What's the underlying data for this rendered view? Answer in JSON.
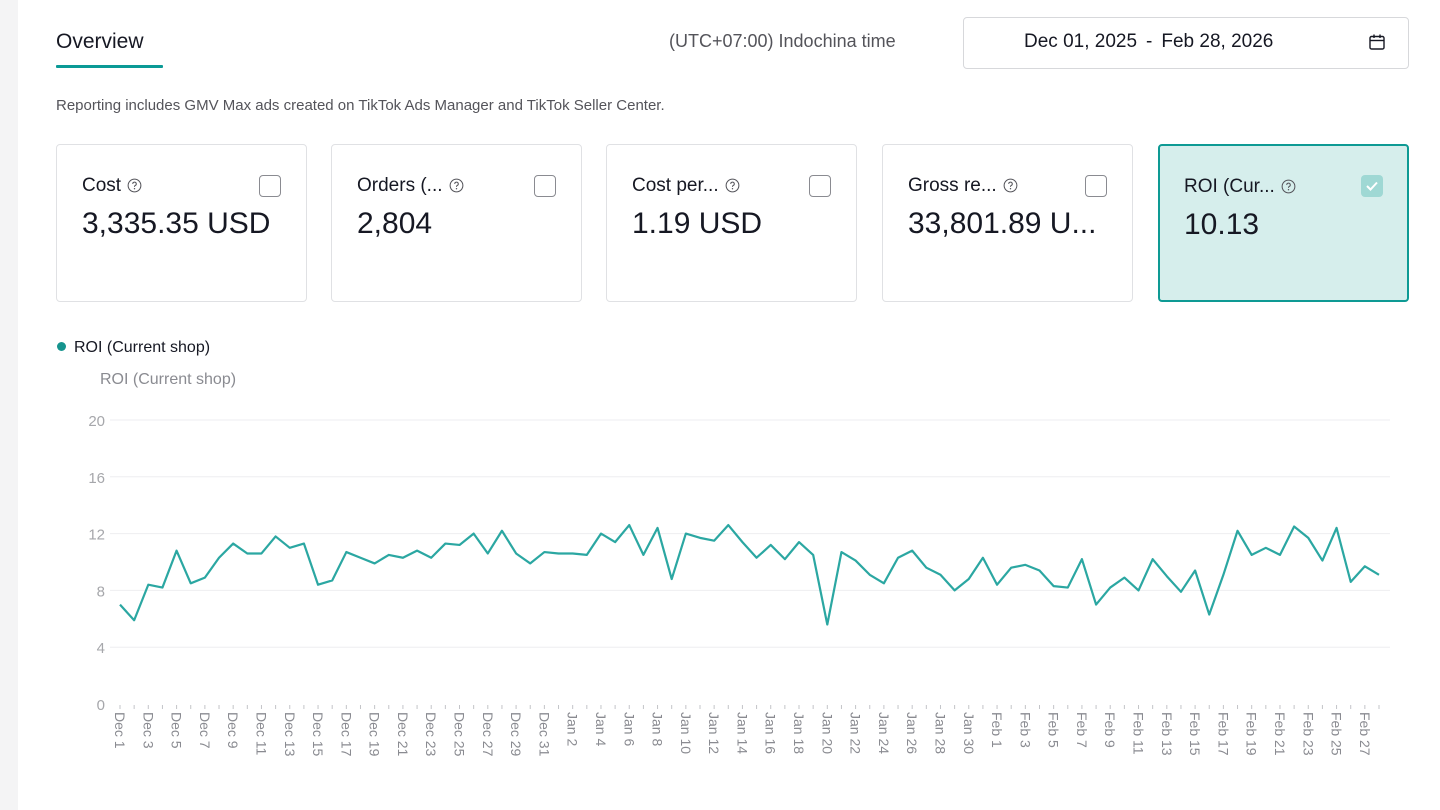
{
  "overview": {
    "tab_label": "Overview",
    "timezone": "(UTC+07:00) Indochina time",
    "date_start": "Dec 01, 2025",
    "date_sep": "-",
    "date_end": "Feb 28, 2026",
    "note": "Reporting includes GMV Max ads created on TikTok Ads Manager and TikTok Seller Center."
  },
  "metrics": [
    {
      "label": "Cost",
      "value": "3,335.35 USD",
      "checked": false
    },
    {
      "label": "Orders (...",
      "value": "2,804",
      "checked": false
    },
    {
      "label": "Cost per...",
      "value": "1.19 USD",
      "checked": false
    },
    {
      "label": "Gross re...",
      "value": "33,801.89 U...",
      "checked": false
    },
    {
      "label": "ROI (Cur...",
      "value": "10.13",
      "checked": true
    }
  ],
  "colors": {
    "accent": "#0b9a96",
    "line": "#2ba7a2",
    "selected_bg": "#d6eeec"
  },
  "icons": {
    "calendar": "calendar-icon",
    "help": "help-circle-icon",
    "check": "check-icon"
  },
  "chart_data": {
    "type": "line",
    "legend": "ROI (Current shop)",
    "ylabel": "ROI (Current shop)",
    "ylim": [
      0,
      20
    ],
    "yticks": [
      0,
      4,
      8,
      12,
      16,
      20
    ],
    "grid": true,
    "x_tick_labels": [
      "Dec 1",
      "Dec 3",
      "Dec 5",
      "Dec 7",
      "Dec 9",
      "Dec 11",
      "Dec 13",
      "Dec 15",
      "Dec 17",
      "Dec 19",
      "Dec 21",
      "Dec 23",
      "Dec 25",
      "Dec 27",
      "Dec 29",
      "Dec 31",
      "Jan 2",
      "Jan 4",
      "Jan 6",
      "Jan 8",
      "Jan 10",
      "Jan 12",
      "Jan 14",
      "Jan 16",
      "Jan 18",
      "Jan 20",
      "Jan 22",
      "Jan 24",
      "Jan 26",
      "Jan 28",
      "Jan 30",
      "Feb 1",
      "Feb 3",
      "Feb 5",
      "Feb 7",
      "Feb 9",
      "Feb 11",
      "Feb 13",
      "Feb 15",
      "Feb 17",
      "Feb 19",
      "Feb 21",
      "Feb 23",
      "Feb 25",
      "Feb 27"
    ],
    "series": [
      {
        "name": "ROI (Current shop)",
        "values": [
          7.0,
          5.9,
          8.4,
          8.2,
          10.8,
          8.5,
          8.9,
          10.3,
          11.3,
          10.6,
          10.6,
          11.8,
          11.0,
          11.3,
          8.4,
          8.7,
          10.7,
          10.3,
          9.9,
          10.5,
          10.3,
          10.8,
          10.3,
          11.3,
          11.2,
          12.0,
          10.6,
          12.2,
          10.6,
          9.9,
          10.7,
          10.6,
          10.6,
          10.5,
          12.0,
          11.4,
          12.6,
          10.5,
          12.4,
          8.8,
          12.0,
          11.7,
          11.5,
          12.6,
          11.4,
          10.3,
          11.2,
          10.2,
          11.4,
          10.5,
          5.6,
          10.7,
          10.1,
          9.1,
          8.5,
          10.3,
          10.8,
          9.6,
          9.1,
          8.0,
          8.8,
          10.3,
          8.4,
          9.6,
          9.8,
          9.4,
          8.3,
          8.2,
          10.2,
          7.0,
          8.2,
          8.9,
          8.0,
          10.2,
          9.0,
          7.9,
          9.4,
          6.3,
          9.1,
          12.2,
          10.5,
          11.0,
          10.5,
          12.5,
          11.7,
          10.1,
          12.4,
          8.6,
          9.7,
          9.1
        ]
      }
    ]
  }
}
